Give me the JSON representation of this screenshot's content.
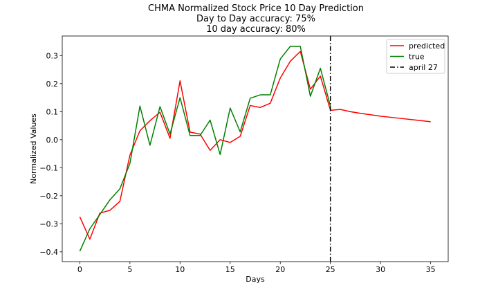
{
  "chart_data": {
    "type": "line",
    "title_lines": [
      "CHMA Normalized Stock Price 10 Day Prediction",
      "Day to Day accuracy: 75%",
      "10 day accuracy: 80%"
    ],
    "xlabel": "Days",
    "ylabel": "Normalized Values",
    "xlim": [
      -1.75,
      36.75
    ],
    "ylim": [
      -0.435,
      0.37
    ],
    "xticks": [
      0,
      5,
      10,
      15,
      20,
      25,
      30,
      35
    ],
    "yticks": [
      -0.4,
      -0.3,
      -0.2,
      -0.1,
      0.0,
      0.1,
      0.2,
      0.3
    ],
    "ytick_labels": [
      "−0.4",
      "−0.3",
      "−0.2",
      "−0.1",
      "0.0",
      "0.1",
      "0.2",
      "0.3"
    ],
    "grid": false,
    "legend_position": "top-right",
    "series": [
      {
        "name": "predicted",
        "color": "#ff0000",
        "x": [
          0,
          1,
          2,
          3,
          4,
          5,
          6,
          7,
          8,
          9,
          10,
          11,
          12,
          13,
          14,
          15,
          16,
          17,
          18,
          19,
          20,
          21,
          22,
          23,
          24,
          25,
          26,
          27,
          28,
          29,
          30,
          31,
          32,
          33,
          34,
          35
        ],
        "values": [
          -0.275,
          -0.355,
          -0.262,
          -0.252,
          -0.22,
          -0.055,
          0.032,
          0.068,
          0.098,
          0.005,
          0.21,
          0.027,
          0.02,
          -0.038,
          0.0,
          -0.01,
          0.012,
          0.122,
          0.115,
          0.13,
          0.22,
          0.28,
          0.315,
          0.18,
          0.227,
          0.105,
          0.108,
          0.1,
          0.094,
          0.089,
          0.084,
          0.08,
          0.076,
          0.072,
          0.068,
          0.064
        ]
      },
      {
        "name": "true",
        "color": "#008000",
        "x": [
          0,
          1,
          2,
          3,
          4,
          5,
          6,
          7,
          8,
          9,
          10,
          11,
          12,
          13,
          14,
          15,
          16,
          17,
          18,
          19,
          20,
          21,
          22,
          23,
          24,
          25
        ],
        "values": [
          -0.398,
          -0.318,
          -0.267,
          -0.215,
          -0.175,
          -0.085,
          0.12,
          -0.02,
          0.118,
          0.02,
          0.15,
          0.015,
          0.015,
          0.07,
          -0.053,
          0.113,
          0.028,
          0.148,
          0.16,
          0.16,
          0.288,
          0.333,
          0.333,
          0.155,
          0.255,
          0.12
        ]
      }
    ],
    "vline": {
      "name": "april 27",
      "x": 25,
      "color": "#000000",
      "style": "dashdot"
    }
  }
}
